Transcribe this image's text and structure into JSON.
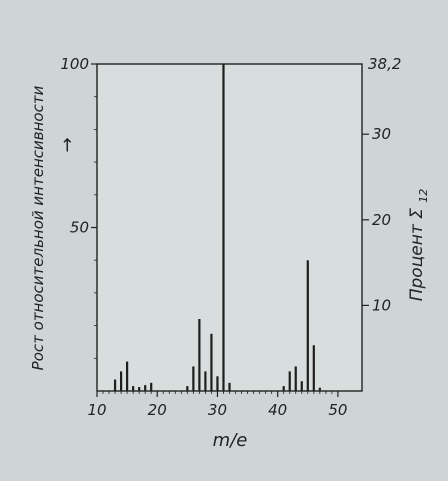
{
  "chart_data": {
    "type": "bar",
    "xlabel": "m/e",
    "ylabel_left": "Рост относительной интенсивности",
    "ylabel_right": "Процент Σ",
    "ylabel_right_subscript": "12",
    "left_axis_arrow": "→",
    "xlim": [
      10,
      54
    ],
    "ylim_left": [
      0,
      100
    ],
    "ylim_right": [
      0,
      38.2
    ],
    "x_ticks": [
      10,
      20,
      30,
      40,
      50
    ],
    "y_ticks_left": [
      50,
      100
    ],
    "y_ticks_right": [
      10,
      20,
      30
    ],
    "y_right_top_label": "38,2",
    "grid": false,
    "series": [
      {
        "values": [
          {
            "x": 13,
            "y": 3.5
          },
          {
            "x": 14,
            "y": 6
          },
          {
            "x": 15,
            "y": 9
          },
          {
            "x": 16,
            "y": 1.5
          },
          {
            "x": 17,
            "y": 1.2
          },
          {
            "x": 18,
            "y": 1.8
          },
          {
            "x": 19,
            "y": 2.5
          },
          {
            "x": 25,
            "y": 1.5
          },
          {
            "x": 26,
            "y": 7.5
          },
          {
            "x": 27,
            "y": 22
          },
          {
            "x": 28,
            "y": 6
          },
          {
            "x": 29,
            "y": 17.5
          },
          {
            "x": 30,
            "y": 4.5
          },
          {
            "x": 31,
            "y": 100
          },
          {
            "x": 32,
            "y": 2.5
          },
          {
            "x": 41,
            "y": 1.5
          },
          {
            "x": 42,
            "y": 6
          },
          {
            "x": 43,
            "y": 7.5
          },
          {
            "x": 44,
            "y": 3
          },
          {
            "x": 45,
            "y": 40
          },
          {
            "x": 46,
            "y": 14
          },
          {
            "x": 47,
            "y": 1
          }
        ]
      }
    ]
  }
}
